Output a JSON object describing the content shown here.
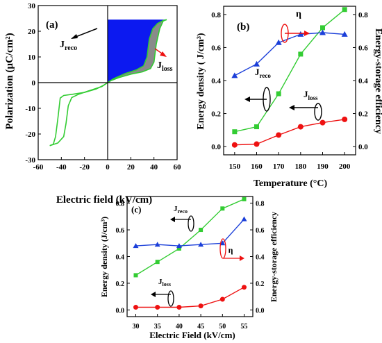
{
  "colors": {
    "green": "#33cc33",
    "red": "#ee1111",
    "blue": "#1b3fd9",
    "fill_blue": "#0c19f0",
    "fill_gray": "#8a8a8a",
    "black": "#000000"
  },
  "chart_data": [
    {
      "panel": "(a)",
      "type": "line",
      "xlabel": "Electric field (kV/cm)",
      "ylabel": "Polarization (μC/cm²)",
      "xlim": [
        -60,
        60
      ],
      "ylim": [
        -30,
        30
      ],
      "xticks": [
        -60,
        -40,
        -20,
        0,
        20,
        40,
        60
      ],
      "yticks": [
        -30,
        -20,
        -10,
        0,
        10,
        20,
        30
      ],
      "grid": false,
      "annotations": [
        {
          "text": "J",
          "sub": "reco"
        },
        {
          "text": "J",
          "sub": "loss"
        }
      ],
      "series": [
        {
          "values_upper": [
            [
              -50,
              -24.5
            ],
            [
              -47,
              -24
            ],
            [
              -45,
              -21
            ],
            [
              -43,
              -14
            ],
            [
              -41,
              -6
            ],
            [
              -38,
              -5
            ],
            [
              -30,
              -4.5
            ],
            [
              -20,
              -3.8
            ],
            [
              -10,
              -2.5
            ],
            [
              -3,
              -0.9
            ],
            [
              0,
              0
            ],
            [
              5,
              1.5
            ],
            [
              15,
              3.5
            ],
            [
              25,
              5
            ],
            [
              31,
              6.5
            ],
            [
              34,
              10
            ],
            [
              36,
              17
            ],
            [
              39,
              21
            ],
            [
              43,
              23
            ],
            [
              48,
              24.2
            ],
            [
              51,
              24.5
            ]
          ],
          "values_lower": [
            [
              51,
              24.5
            ],
            [
              48,
              24
            ],
            [
              45,
              21
            ],
            [
              42,
              15
            ],
            [
              40,
              8
            ],
            [
              37,
              5.5
            ],
            [
              30,
              4.2
            ],
            [
              20,
              3.3
            ],
            [
              10,
              2
            ],
            [
              3,
              0.8
            ],
            [
              0,
              0
            ],
            [
              -5,
              -1.5
            ],
            [
              -15,
              -3
            ],
            [
              -25,
              -4.5
            ],
            [
              -31,
              -5.8
            ],
            [
              -34,
              -9
            ],
            [
              -36,
              -16
            ],
            [
              -38,
              -21
            ],
            [
              -43,
              -23.5
            ],
            [
              -50,
              -24.5
            ]
          ]
        }
      ]
    },
    {
      "panel": "(b)",
      "type": "line",
      "xlabel": "Temperature (°C)",
      "ylabel": "Energy density ( J/cm³)",
      "y2label": "Energy-storage efficiency",
      "x": [
        150,
        160,
        170,
        180,
        190,
        200
      ],
      "xlim": [
        145,
        205
      ],
      "ylim": [
        -0.05,
        0.85
      ],
      "y2lim": [
        -0.05,
        0.85
      ],
      "xticks": [
        150,
        160,
        170,
        180,
        190,
        200
      ],
      "yticks": [
        0.0,
        0.2,
        0.4,
        0.6,
        0.8
      ],
      "grid": false,
      "annotations": [
        {
          "text": "η"
        },
        {
          "text": "J",
          "sub": "reco"
        },
        {
          "text": "J",
          "sub": "loss"
        }
      ],
      "series": [
        {
          "name": "J_reco",
          "axis": "left",
          "values": [
            0.09,
            0.12,
            0.32,
            0.56,
            0.72,
            0.83
          ]
        },
        {
          "name": "J_loss",
          "axis": "left",
          "values": [
            0.01,
            0.015,
            0.07,
            0.12,
            0.145,
            0.165
          ]
        },
        {
          "name": "η",
          "axis": "right",
          "values": [
            0.43,
            0.5,
            0.63,
            0.68,
            0.69,
            0.68
          ]
        }
      ]
    },
    {
      "panel": "(c)",
      "type": "line",
      "xlabel": "Electric Field (kV/cm)",
      "ylabel": "Energy density (J/cm³)",
      "y2label": "Energy-storage efficiency",
      "x": [
        30,
        35,
        40,
        45,
        50,
        55
      ],
      "xlim": [
        28,
        57
      ],
      "ylim": [
        -0.05,
        0.85
      ],
      "y2lim": [
        -0.05,
        0.85
      ],
      "xticks": [
        30,
        35,
        40,
        45,
        50,
        55
      ],
      "yticks": [
        0.0,
        0.2,
        0.4,
        0.6,
        0.8
      ],
      "grid": false,
      "annotations": [
        {
          "text": "J",
          "sub": "reco"
        },
        {
          "text": "η"
        },
        {
          "text": "J",
          "sub": "loss"
        }
      ],
      "series": [
        {
          "name": "J_reco",
          "axis": "left",
          "values": [
            0.26,
            0.36,
            0.46,
            0.6,
            0.76,
            0.83
          ]
        },
        {
          "name": "J_loss",
          "axis": "left",
          "values": [
            0.02,
            0.02,
            0.02,
            0.03,
            0.08,
            0.17
          ]
        },
        {
          "name": "η",
          "axis": "right",
          "values": [
            0.48,
            0.49,
            0.48,
            0.49,
            0.5,
            0.68
          ]
        }
      ]
    }
  ]
}
